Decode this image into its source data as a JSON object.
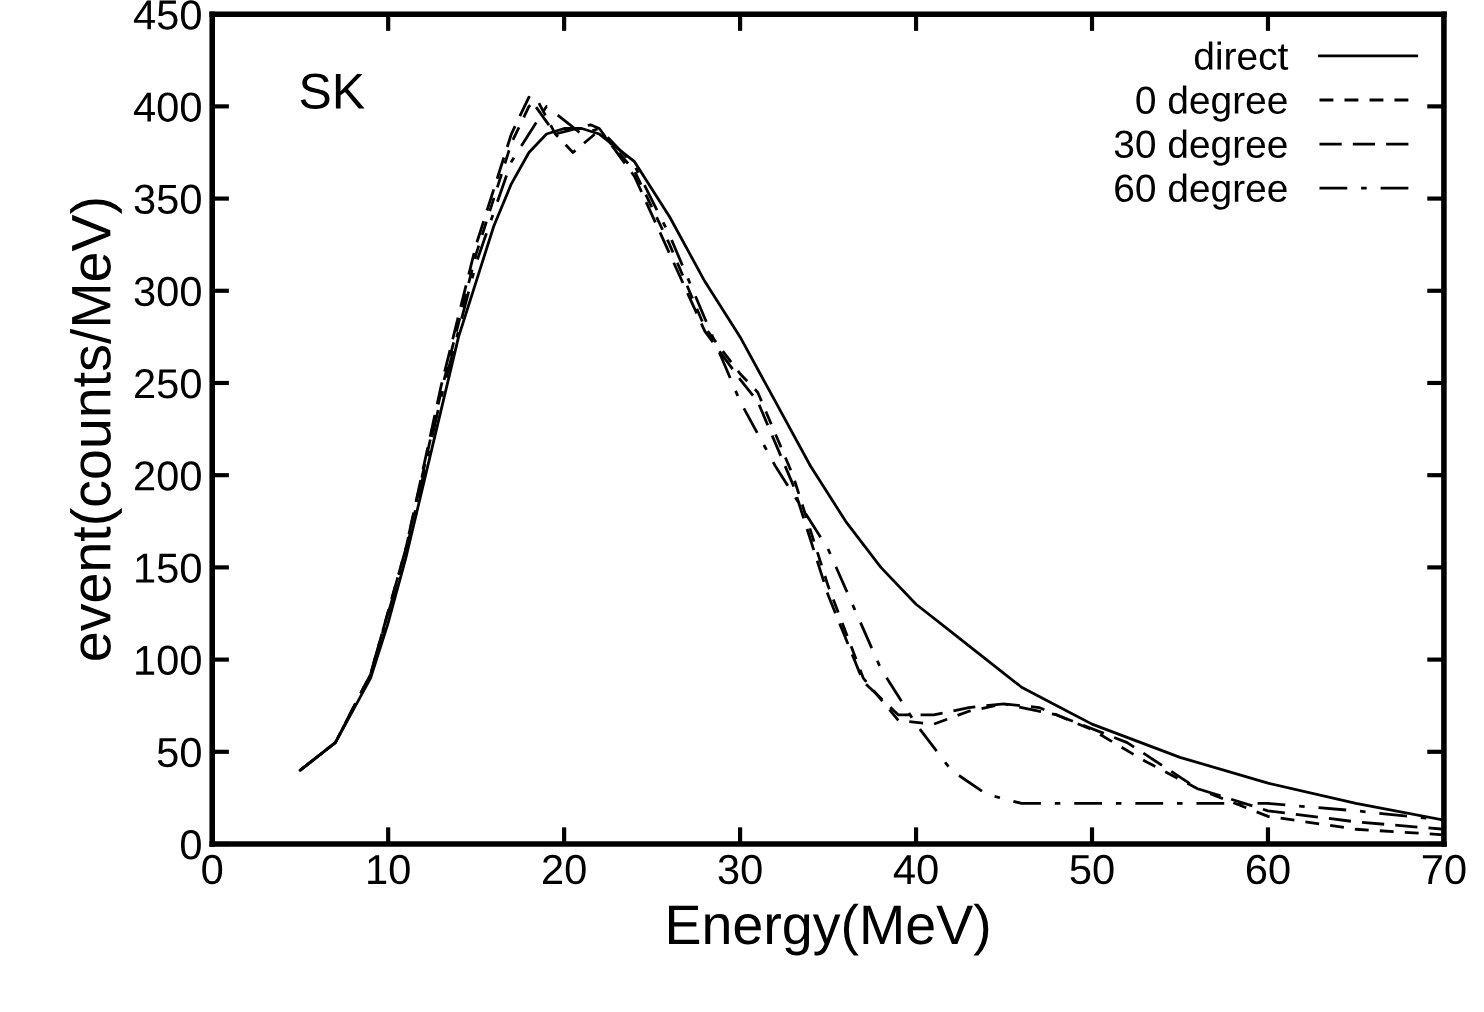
{
  "chart_data": {
    "type": "line",
    "xlabel": "Energy(MeV)",
    "ylabel": "event(counts/MeV)",
    "annotations": [
      "SK"
    ],
    "xlim": [
      0,
      70
    ],
    "ylim": [
      0,
      450
    ],
    "xticks": [
      0,
      10,
      20,
      30,
      40,
      50,
      60,
      70
    ],
    "yticks": [
      0,
      50,
      100,
      150,
      200,
      250,
      300,
      350,
      400,
      450
    ],
    "grid": false,
    "legend": "top right",
    "marker": "none",
    "series": [
      {
        "name": "direct",
        "color": "#000000",
        "line_style": "solid",
        "x": [
          5,
          7,
          9,
          10,
          11,
          12,
          13,
          14,
          15,
          16,
          17,
          18,
          19,
          20,
          21,
          22,
          24,
          26,
          28,
          30,
          32,
          34,
          36,
          38,
          40,
          42,
          44,
          46,
          48,
          50,
          55,
          60,
          65,
          70
        ],
        "values": [
          40,
          55,
          90,
          120,
          155,
          195,
          235,
          275,
          305,
          335,
          358,
          375,
          385,
          388,
          388,
          385,
          370,
          340,
          305,
          275,
          240,
          205,
          175,
          150,
          130,
          115,
          100,
          85,
          75,
          65,
          47,
          33,
          22,
          13
        ]
      },
      {
        "name": "0 degree",
        "color": "#000000",
        "line_style": "dashed",
        "x": [
          5,
          7,
          9,
          11,
          13,
          15,
          16,
          17,
          18,
          18.5,
          19.5,
          20.5,
          21.5,
          22,
          24,
          26,
          28,
          30,
          31,
          33,
          35,
          37,
          39,
          41,
          43,
          45,
          47,
          50,
          53,
          56,
          60,
          65,
          70
        ],
        "values": [
          40,
          55,
          92,
          160,
          245,
          320,
          350,
          380,
          400,
          403,
          385,
          375,
          383,
          387,
          365,
          325,
          280,
          255,
          245,
          200,
          140,
          90,
          67,
          65,
          72,
          76,
          74,
          62,
          45,
          30,
          15,
          8,
          5
        ]
      },
      {
        "name": "30 degree",
        "color": "#000000",
        "line_style": "dashed",
        "x": [
          5,
          7,
          9,
          11,
          13,
          15,
          16,
          17,
          18,
          19.5,
          21.5,
          22,
          24,
          26,
          28,
          30,
          31,
          33,
          35,
          37,
          39,
          41,
          43,
          45,
          48,
          52,
          56,
          60,
          65,
          70
        ],
        "values": [
          40,
          55,
          92,
          160,
          248,
          325,
          355,
          385,
          405,
          385,
          390,
          388,
          362,
          320,
          278,
          252,
          240,
          195,
          135,
          88,
          70,
          70,
          74,
          76,
          70,
          55,
          30,
          18,
          12,
          8
        ]
      },
      {
        "name": "60 degree",
        "color": "#000000",
        "line_style": "dashdot",
        "x": [
          5,
          7,
          9,
          11,
          13,
          15,
          17,
          19,
          21,
          22,
          24,
          26,
          28,
          30,
          32,
          35,
          38,
          40,
          42,
          44,
          46,
          50,
          55,
          60,
          65,
          70
        ],
        "values": [
          40,
          55,
          92,
          158,
          242,
          315,
          370,
          400,
          385,
          388,
          368,
          330,
          285,
          240,
          205,
          160,
          95,
          65,
          40,
          27,
          22,
          22,
          22,
          22,
          18,
          13
        ]
      }
    ]
  }
}
